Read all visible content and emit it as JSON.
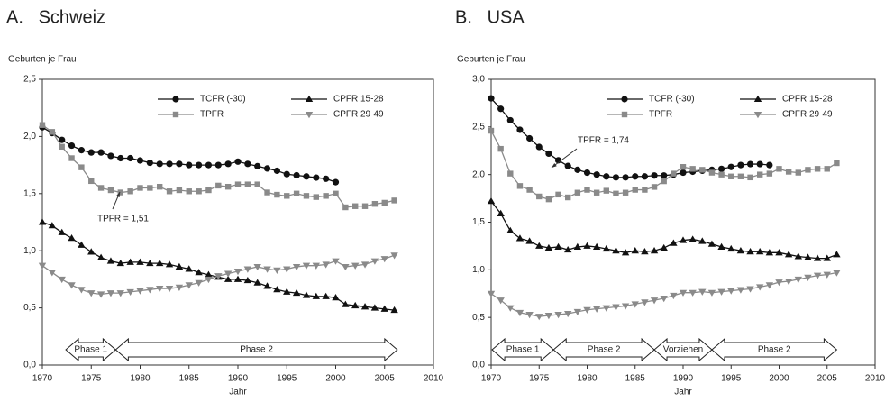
{
  "chart_data": [
    {
      "type": "line",
      "title": "A.   Schweiz",
      "y_label": "Geburten je Frau",
      "x_label": "Jahr",
      "x": [
        1970,
        1971,
        1972,
        1973,
        1974,
        1975,
        1976,
        1977,
        1978,
        1979,
        1980,
        1981,
        1982,
        1983,
        1984,
        1985,
        1986,
        1987,
        1988,
        1989,
        1990,
        1991,
        1992,
        1993,
        1994,
        1995,
        1996,
        1997,
        1998,
        1999,
        2000,
        2001,
        2002,
        2003,
        2004,
        2005,
        2006
      ],
      "xlim": [
        1970,
        2010
      ],
      "xticks": [
        1970,
        1975,
        1980,
        1985,
        1990,
        1995,
        2000,
        2005,
        2010
      ],
      "ylim": [
        0,
        2.5
      ],
      "yticks": [
        {
          "value": 0,
          "label": "0,0"
        },
        {
          "value": 0.5,
          "label": "0,5"
        },
        {
          "value": 1,
          "label": "1,0"
        },
        {
          "value": 1.5,
          "label": "1,5"
        },
        {
          "value": 2,
          "label": "2,0"
        },
        {
          "value": 2.5,
          "label": "2,5"
        }
      ],
      "grid": false,
      "series": [
        {
          "name": "TCFR (-30)",
          "color": "#111111",
          "marker": "circle",
          "values": [
            2.08,
            2.03,
            1.97,
            1.92,
            1.88,
            1.86,
            1.86,
            1.83,
            1.81,
            1.81,
            1.79,
            1.77,
            1.76,
            1.76,
            1.76,
            1.75,
            1.75,
            1.75,
            1.75,
            1.76,
            1.78,
            1.76,
            1.74,
            1.72,
            1.7,
            1.67,
            1.66,
            1.65,
            1.64,
            1.63,
            1.6,
            null,
            null,
            null,
            null,
            null,
            null
          ]
        },
        {
          "name": "TPFR",
          "color": "#8a8a8a",
          "marker": "square",
          "values": [
            2.1,
            2.04,
            1.91,
            1.81,
            1.73,
            1.61,
            1.55,
            1.53,
            1.51,
            1.52,
            1.55,
            1.55,
            1.56,
            1.52,
            1.53,
            1.52,
            1.52,
            1.53,
            1.57,
            1.56,
            1.58,
            1.58,
            1.58,
            1.51,
            1.49,
            1.48,
            1.5,
            1.48,
            1.47,
            1.48,
            1.5,
            1.38,
            1.39,
            1.39,
            1.41,
            1.42,
            1.44
          ]
        },
        {
          "name": "CPFR 15-28",
          "color": "#111111",
          "marker": "triangle-up",
          "values": [
            1.25,
            1.22,
            1.16,
            1.11,
            1.05,
            0.99,
            0.94,
            0.91,
            0.89,
            0.9,
            0.9,
            0.89,
            0.89,
            0.88,
            0.86,
            0.84,
            0.81,
            0.79,
            0.77,
            0.75,
            0.75,
            0.74,
            0.72,
            0.69,
            0.66,
            0.64,
            0.63,
            0.61,
            0.6,
            0.6,
            0.59,
            0.53,
            0.52,
            0.51,
            0.5,
            0.49,
            0.48
          ]
        },
        {
          "name": "CPFR 29-49",
          "color": "#8a8a8a",
          "marker": "triangle-down",
          "values": [
            0.87,
            0.81,
            0.75,
            0.7,
            0.66,
            0.63,
            0.62,
            0.63,
            0.63,
            0.64,
            0.65,
            0.66,
            0.67,
            0.67,
            0.68,
            0.7,
            0.72,
            0.75,
            0.78,
            0.8,
            0.82,
            0.84,
            0.86,
            0.84,
            0.83,
            0.84,
            0.86,
            0.87,
            0.87,
            0.88,
            0.91,
            0.86,
            0.87,
            0.88,
            0.91,
            0.93,
            0.96
          ]
        }
      ],
      "annotation": "TPFR = 1,51",
      "phases": [
        "Phase 1",
        "Phase 2"
      ]
    },
    {
      "type": "line",
      "title": "B.   USA",
      "y_label": "Geburten je Frau",
      "x_label": "Jahr",
      "x": [
        1970,
        1971,
        1972,
        1973,
        1974,
        1975,
        1976,
        1977,
        1978,
        1979,
        1980,
        1981,
        1982,
        1983,
        1984,
        1985,
        1986,
        1987,
        1988,
        1989,
        1990,
        1991,
        1992,
        1993,
        1994,
        1995,
        1996,
        1997,
        1998,
        1999,
        2000,
        2001,
        2002,
        2003,
        2004,
        2005,
        2006
      ],
      "xlim": [
        1970,
        2010
      ],
      "xticks": [
        1970,
        1975,
        1980,
        1985,
        1990,
        1995,
        2000,
        2005,
        2010
      ],
      "ylim": [
        0,
        3
      ],
      "yticks": [
        {
          "value": 0,
          "label": "0,0"
        },
        {
          "value": 0.5,
          "label": "0,5"
        },
        {
          "value": 1,
          "label": "1,0"
        },
        {
          "value": 1.5,
          "label": "1,5"
        },
        {
          "value": 2,
          "label": "2,0"
        },
        {
          "value": 2.5,
          "label": "2,5"
        },
        {
          "value": 3,
          "label": "3,0"
        }
      ],
      "grid": false,
      "series": [
        {
          "name": "TCFR (-30)",
          "color": "#111111",
          "marker": "circle",
          "values": [
            2.8,
            2.69,
            2.57,
            2.47,
            2.38,
            2.29,
            2.22,
            2.15,
            2.09,
            2.05,
            2.02,
            2.0,
            1.98,
            1.97,
            1.97,
            1.98,
            1.98,
            1.99,
            1.99,
            2.0,
            2.02,
            2.03,
            2.04,
            2.05,
            2.06,
            2.08,
            2.1,
            2.11,
            2.11,
            2.1,
            null,
            null,
            null,
            null,
            null,
            null,
            null
          ]
        },
        {
          "name": "TPFR",
          "color": "#8a8a8a",
          "marker": "square",
          "values": [
            2.46,
            2.27,
            2.01,
            1.88,
            1.84,
            1.77,
            1.74,
            1.79,
            1.76,
            1.81,
            1.84,
            1.81,
            1.83,
            1.8,
            1.81,
            1.84,
            1.84,
            1.87,
            1.93,
            2.01,
            2.08,
            2.06,
            2.05,
            2.02,
            2.0,
            1.98,
            1.98,
            1.97,
            2.0,
            2.01,
            2.06,
            2.03,
            2.02,
            2.05,
            2.06,
            2.06,
            2.12
          ]
        },
        {
          "name": "CPFR 15-28",
          "color": "#111111",
          "marker": "triangle-up",
          "values": [
            1.72,
            1.59,
            1.41,
            1.33,
            1.3,
            1.25,
            1.23,
            1.24,
            1.21,
            1.24,
            1.25,
            1.24,
            1.22,
            1.2,
            1.18,
            1.2,
            1.19,
            1.2,
            1.23,
            1.28,
            1.31,
            1.32,
            1.3,
            1.27,
            1.24,
            1.22,
            1.2,
            1.19,
            1.19,
            1.18,
            1.18,
            1.16,
            1.14,
            1.13,
            1.12,
            1.12,
            1.16
          ]
        },
        {
          "name": "CPFR 29-49",
          "color": "#8a8a8a",
          "marker": "triangle-down",
          "values": [
            0.75,
            0.68,
            0.6,
            0.55,
            0.53,
            0.51,
            0.52,
            0.53,
            0.54,
            0.56,
            0.58,
            0.59,
            0.6,
            0.61,
            0.62,
            0.64,
            0.66,
            0.68,
            0.7,
            0.73,
            0.76,
            0.76,
            0.77,
            0.76,
            0.77,
            0.78,
            0.79,
            0.8,
            0.82,
            0.84,
            0.87,
            0.88,
            0.9,
            0.92,
            0.94,
            0.95,
            0.97
          ]
        }
      ],
      "annotation": "TPFR = 1,74",
      "phases": [
        "Phase 1",
        "Phase 2",
        "Vorziehen",
        "Phase 2"
      ]
    }
  ]
}
